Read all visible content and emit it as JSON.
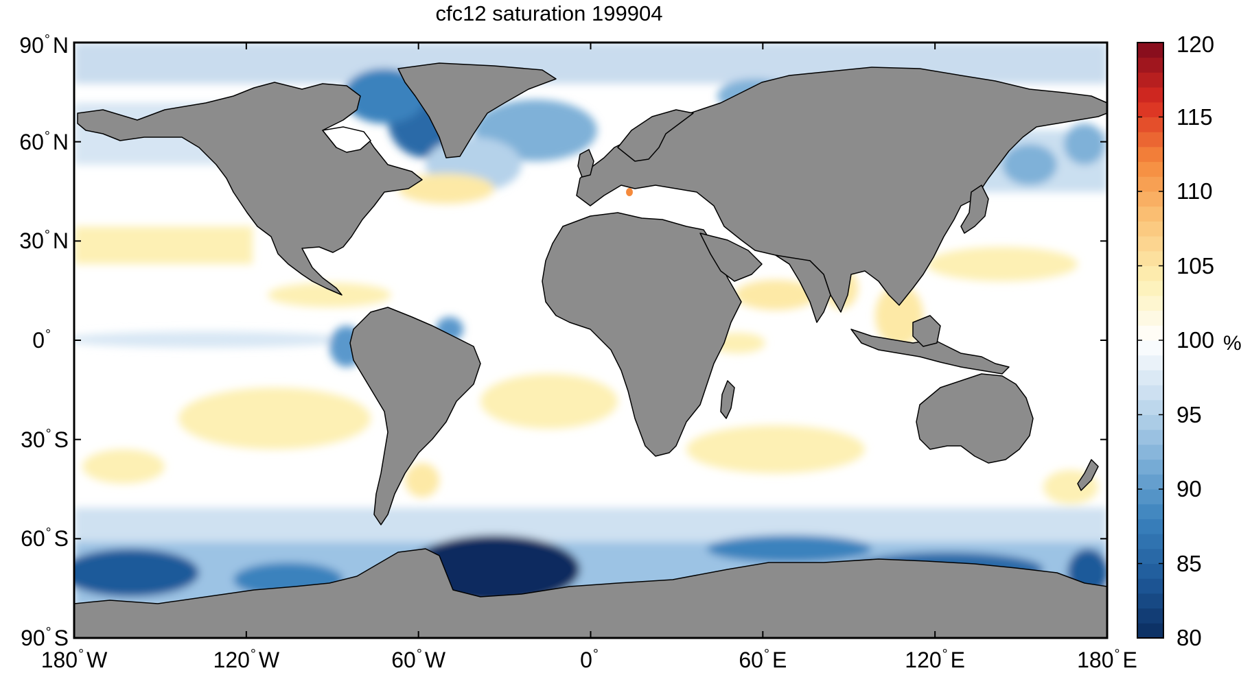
{
  "title": "cfc12 saturation 199904",
  "map": {
    "lat_ticks": [
      {
        "value": 90,
        "num": "90",
        "hemi": "N"
      },
      {
        "value": 60,
        "num": "60",
        "hemi": "N"
      },
      {
        "value": 30,
        "num": "30",
        "hemi": "N"
      },
      {
        "value": 0,
        "num": "0",
        "hemi": ""
      },
      {
        "value": -30,
        "num": "30",
        "hemi": "S"
      },
      {
        "value": -60,
        "num": "60",
        "hemi": "S"
      },
      {
        "value": -90,
        "num": "90",
        "hemi": "S"
      }
    ],
    "lon_ticks": [
      {
        "value": -180,
        "num": "180",
        "hemi": "W"
      },
      {
        "value": -120,
        "num": "120",
        "hemi": "W"
      },
      {
        "value": -60,
        "num": "60",
        "hemi": "W"
      },
      {
        "value": 0,
        "num": "0",
        "hemi": ""
      },
      {
        "value": 60,
        "num": "60",
        "hemi": "E"
      },
      {
        "value": 120,
        "num": "120",
        "hemi": "E"
      },
      {
        "value": 180,
        "num": "180",
        "hemi": "E"
      }
    ],
    "land_color": "#8c8c8c",
    "ocean_base_color": "#ffffff"
  },
  "colorbar": {
    "min": 80,
    "max": 120,
    "ticks": [
      "80",
      "85",
      "90",
      "95",
      "100",
      "105",
      "110",
      "115",
      "120"
    ],
    "unit": "%",
    "colors": [
      "#0a2c5f",
      "#1f5a9a",
      "#3a82bd",
      "#7fb1d8",
      "#c6dcef",
      "#ffffff",
      "#fdf0b4",
      "#fbc57a",
      "#f58a3c",
      "#d92b20",
      "#7d0a1c"
    ]
  }
}
